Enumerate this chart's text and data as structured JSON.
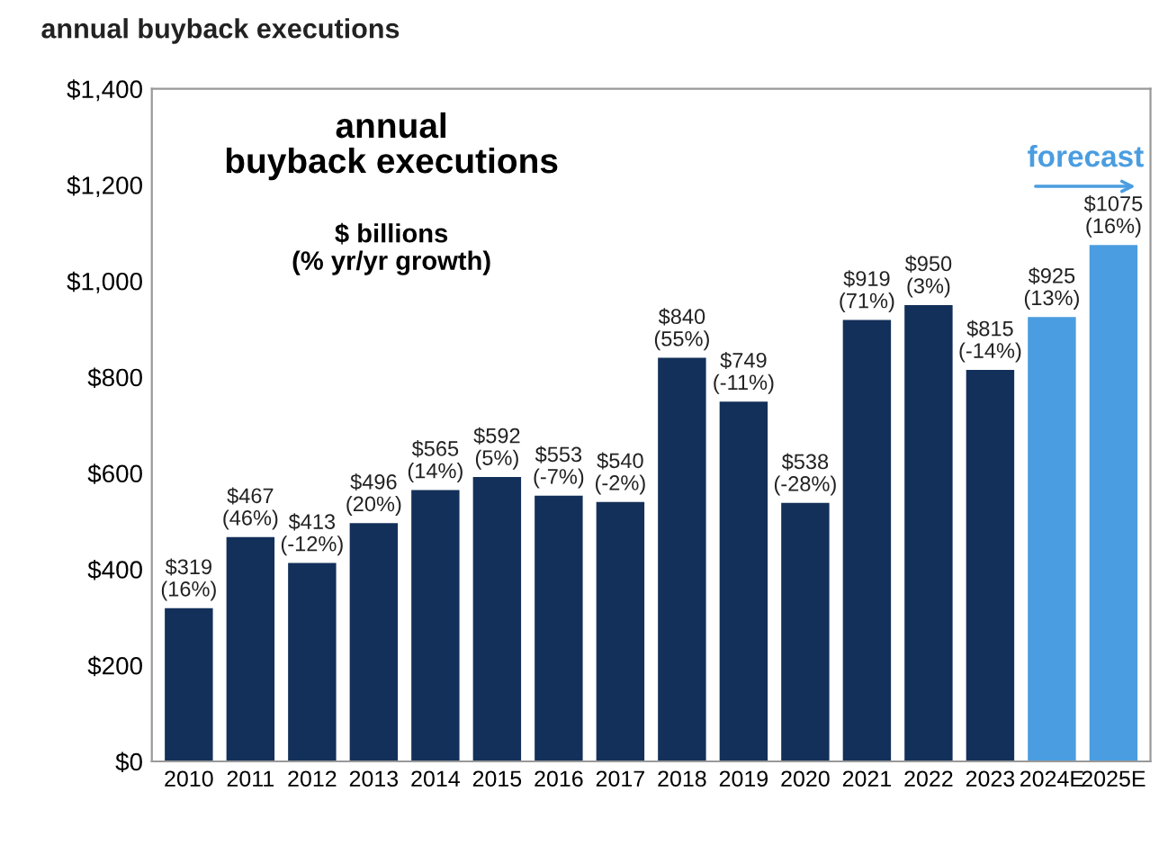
{
  "chart_data": {
    "type": "bar",
    "title": "annual buyback executions",
    "categories": [
      "2010",
      "2011",
      "2012",
      "2013",
      "2014",
      "2015",
      "2016",
      "2017",
      "2018",
      "2019",
      "2020",
      "2021",
      "2022",
      "2023",
      "2024E",
      "2025E"
    ],
    "values": [
      319,
      467,
      413,
      496,
      565,
      592,
      553,
      540,
      840,
      749,
      538,
      919,
      950,
      815,
      925,
      1075
    ],
    "colors": [
      "#13305a",
      "#13305a",
      "#13305a",
      "#13305a",
      "#13305a",
      "#13305a",
      "#13305a",
      "#13305a",
      "#13305a",
      "#13305a",
      "#13305a",
      "#13305a",
      "#13305a",
      "#13305a",
      "#4a9de0",
      "#4a9de0"
    ],
    "value_labels": [
      "$319\n(16%)",
      "$467\n(46%)",
      "$413\n(-12%)",
      "$496\n(20%)",
      "$565\n(14%)",
      "$592\n(5%)",
      "$553\n(-7%)",
      "$540\n(-2%)",
      "$840\n(55%)",
      "$749\n(-11%)",
      "$538\n(-28%)",
      "$919\n(71%)",
      "$950\n(3%)",
      "$815\n(-14%)",
      "$925\n(13%)",
      "$1075\n(16%)"
    ],
    "ylim": [
      0,
      1400
    ],
    "yticks": [
      {
        "value": 0,
        "label": "$0"
      },
      {
        "value": 200,
        "label": "$200"
      },
      {
        "value": 400,
        "label": "$400"
      },
      {
        "value": 600,
        "label": "$600"
      },
      {
        "value": 800,
        "label": "$800"
      },
      {
        "value": 1000,
        "label": "$1,000"
      },
      {
        "value": 1200,
        "label": "$1,200"
      },
      {
        "value": 1400,
        "label": "$1,400"
      }
    ],
    "annotations": [
      "annual\nbuyback executions",
      "$ billions\n(% yr/yr growth)",
      "forecast"
    ],
    "grid": false,
    "legend": false
  }
}
